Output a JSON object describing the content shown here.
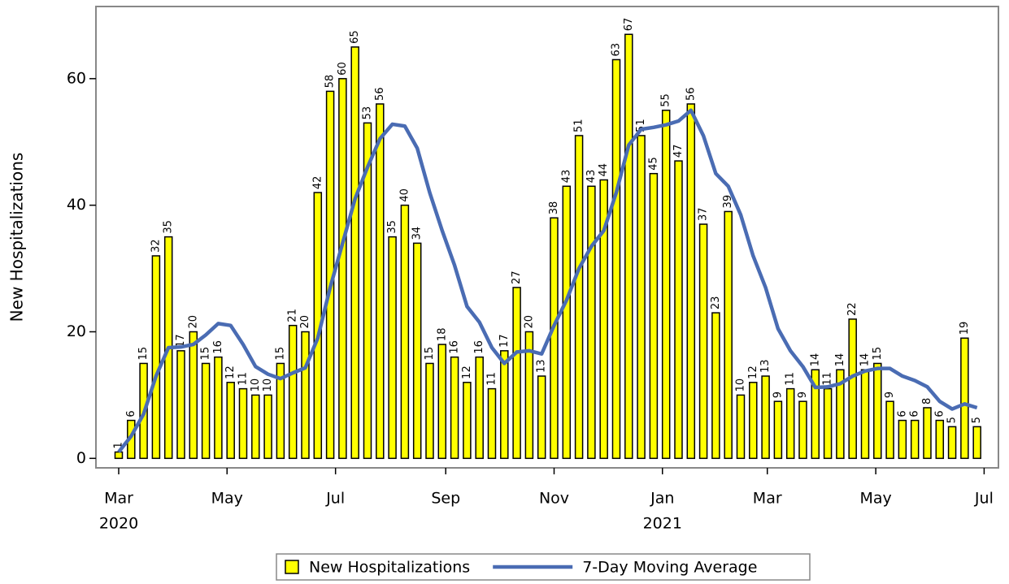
{
  "chart_data": {
    "type": "bar-line",
    "y_label": "New Hospitalizations",
    "x": [
      0,
      1,
      2,
      3,
      4,
      5,
      6,
      7,
      8,
      9,
      10,
      11,
      12,
      13,
      14,
      15,
      16,
      17,
      18,
      19,
      20,
      21,
      22,
      23,
      24,
      25,
      26,
      27,
      28,
      29,
      30,
      31,
      32,
      33,
      34,
      35,
      36,
      37,
      38,
      39,
      40,
      41,
      42,
      43,
      44,
      45,
      46,
      47,
      48,
      49,
      50,
      51,
      52,
      53,
      54,
      55,
      56,
      57,
      58,
      59,
      60,
      61,
      62,
      63,
      64,
      65,
      66,
      67,
      68,
      69
    ],
    "series": [
      {
        "name": "New Hospitalizations",
        "type": "bar",
        "color": "#ffff00",
        "values": [
          1,
          6,
          15,
          32,
          35,
          17,
          20,
          15,
          16,
          12,
          11,
          10,
          10,
          15,
          21,
          20,
          42,
          58,
          60,
          65,
          53,
          56,
          35,
          40,
          34,
          15,
          18,
          16,
          12,
          16,
          11,
          17,
          27,
          20,
          13,
          38,
          43,
          51,
          43,
          44,
          63,
          67,
          51,
          45,
          55,
          47,
          56,
          37,
          23,
          39,
          10,
          12,
          13,
          9,
          11,
          9,
          14,
          11,
          14,
          22,
          14,
          15,
          9,
          6,
          6,
          8,
          6,
          5,
          19,
          5
        ]
      },
      {
        "name": "7-Day Moving Average",
        "type": "line",
        "color": "#4a6cb3",
        "values": [
          1,
          3.5,
          7,
          13,
          17.5,
          17.6,
          18,
          19.5,
          21.3,
          21,
          18,
          14.5,
          13.3,
          12.6,
          13.5,
          14.3,
          19,
          27,
          34,
          41,
          46,
          50.5,
          52.8,
          52.5,
          49,
          42,
          36,
          30.5,
          24,
          21.5,
          17.5,
          15,
          16.8,
          17,
          16.5,
          21,
          25,
          30,
          33.5,
          36,
          42,
          49.5,
          52,
          52.3,
          52.7,
          53.3,
          55,
          51,
          45,
          43,
          38.5,
          32,
          27,
          20.5,
          17,
          14.5,
          11.2,
          11.3,
          11.8,
          13,
          13.8,
          14.2,
          14.2,
          13,
          12.3,
          11.3,
          9,
          7.8,
          8.6,
          8
        ]
      }
    ],
    "xlim": [
      -1.83,
      70.72
    ],
    "xticks": [
      {
        "value": 0,
        "label": "Mar"
      },
      {
        "value": 8.71,
        "label": "May"
      },
      {
        "value": 17.43,
        "label": "Jul"
      },
      {
        "value": 26.29,
        "label": "Sep"
      },
      {
        "value": 35,
        "label": "Nov"
      },
      {
        "value": 43.71,
        "label": "Jan"
      },
      {
        "value": 52.14,
        "label": "Mar"
      },
      {
        "value": 60.86,
        "label": "May"
      },
      {
        "value": 69.57,
        "label": "Jul"
      }
    ],
    "year_labels": [
      {
        "value": 0,
        "label": "2020"
      },
      {
        "value": 43.71,
        "label": "2021"
      }
    ],
    "ylim": [
      -1.5,
      71.4
    ],
    "yticks": [
      0,
      20,
      40,
      60
    ],
    "legend": "bottom"
  }
}
